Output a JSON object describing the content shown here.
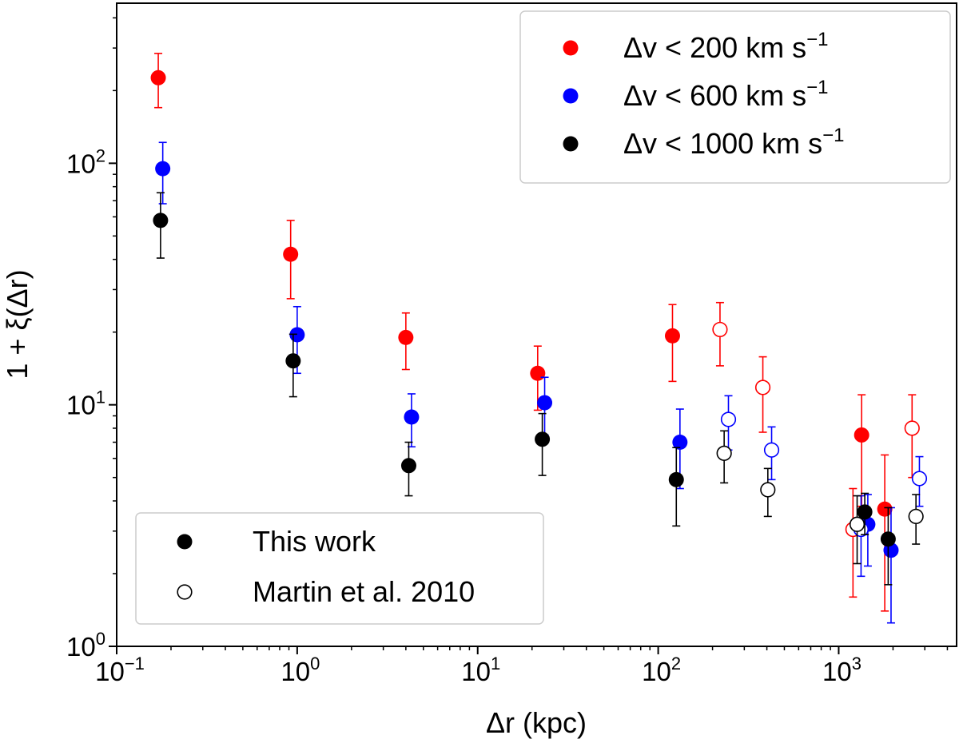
{
  "chart_data": {
    "type": "scatter",
    "xscale": "log",
    "yscale": "log",
    "xlim": [
      0.1,
      4500
    ],
    "ylim": [
      1,
      460
    ],
    "xlabel": "Δr (kpc)",
    "ylabel": "1 + ξ(Δr)",
    "xticks": [
      {
        "base": "10",
        "exp": "−1",
        "value": 0.1
      },
      {
        "base": "10",
        "exp": "0",
        "value": 1
      },
      {
        "base": "10",
        "exp": "1",
        "value": 10
      },
      {
        "base": "10",
        "exp": "2",
        "value": 100
      },
      {
        "base": "10",
        "exp": "3",
        "value": 1000
      }
    ],
    "yticks": [
      {
        "base": "10",
        "exp": "0",
        "value": 1
      },
      {
        "base": "10",
        "exp": "1",
        "value": 10
      },
      {
        "base": "10",
        "exp": "2",
        "value": 100
      }
    ],
    "color_legend": [
      {
        "prefix": "Δv < 200 km s",
        "sup": "−1",
        "color": "#ff0000"
      },
      {
        "prefix": "Δv < 600 km s",
        "sup": "−1",
        "color": "#0000ff"
      },
      {
        "prefix": "Δv < 1000 km s",
        "sup": "−1",
        "color": "#000000"
      }
    ],
    "marker_legend": [
      {
        "label": "This work",
        "filled": true
      },
      {
        "label": "Martin et al. 2010",
        "filled": false
      }
    ],
    "series": [
      {
        "name": "Δv < 200 km s−1 (This work)",
        "color": "#ff0000",
        "filled": true,
        "points": [
          {
            "x": 0.17,
            "y": 226,
            "lo": 170,
            "hi": 285
          },
          {
            "x": 0.92,
            "y": 42,
            "lo": 27.5,
            "hi": 58
          },
          {
            "x": 4.0,
            "y": 19.0,
            "lo": 14.0,
            "hi": 24.0
          },
          {
            "x": 21.5,
            "y": 13.5,
            "lo": 9.5,
            "hi": 17.5
          },
          {
            "x": 120,
            "y": 19.3,
            "lo": 12.5,
            "hi": 26
          },
          {
            "x": 1340,
            "y": 7.5,
            "lo": 3.8,
            "hi": 11.0
          },
          {
            "x": 1800,
            "y": 3.7,
            "lo": 1.4,
            "hi": 6.2
          }
        ]
      },
      {
        "name": "Δv < 200 km s−1 (Martin et al. 2010)",
        "color": "#ff0000",
        "filled": false,
        "points": [
          {
            "x": 220,
            "y": 20.5,
            "lo": 14.5,
            "hi": 26.5
          },
          {
            "x": 380,
            "y": 11.8,
            "lo": 7.7,
            "hi": 15.8
          },
          {
            "x": 1200,
            "y": 3.05,
            "lo": 1.6,
            "hi": 4.5
          },
          {
            "x": 2550,
            "y": 8.0,
            "lo": 5.0,
            "hi": 11.0
          }
        ]
      },
      {
        "name": "Δv < 600 km s−1 (This work)",
        "color": "#0000ff",
        "filled": true,
        "points": [
          {
            "x": 0.18,
            "y": 95,
            "lo": 68,
            "hi": 122
          },
          {
            "x": 1.0,
            "y": 19.5,
            "lo": 13.5,
            "hi": 25.5
          },
          {
            "x": 4.3,
            "y": 8.9,
            "lo": 6.7,
            "hi": 11.1
          },
          {
            "x": 23.5,
            "y": 10.2,
            "lo": 7.5,
            "hi": 13.0
          },
          {
            "x": 132,
            "y": 7.0,
            "lo": 4.5,
            "hi": 9.6
          },
          {
            "x": 1450,
            "y": 3.2,
            "lo": 2.15,
            "hi": 4.25
          },
          {
            "x": 1950,
            "y": 2.5,
            "lo": 1.25,
            "hi": 3.75
          }
        ]
      },
      {
        "name": "Δv < 600 km s−1 (Martin et al. 2010)",
        "color": "#0000ff",
        "filled": false,
        "points": [
          {
            "x": 245,
            "y": 8.7,
            "lo": 6.5,
            "hi": 10.9
          },
          {
            "x": 425,
            "y": 6.5,
            "lo": 4.9,
            "hi": 8.1
          },
          {
            "x": 1330,
            "y": 3.05,
            "lo": 1.95,
            "hi": 4.2
          },
          {
            "x": 2800,
            "y": 4.95,
            "lo": 3.8,
            "hi": 6.1
          }
        ]
      },
      {
        "name": "Δv < 1000 km s−1 (This work)",
        "color": "#000000",
        "filled": true,
        "points": [
          {
            "x": 0.175,
            "y": 58,
            "lo": 40.5,
            "hi": 75.5
          },
          {
            "x": 0.95,
            "y": 15.2,
            "lo": 10.8,
            "hi": 19.6
          },
          {
            "x": 4.15,
            "y": 5.6,
            "lo": 4.2,
            "hi": 7.0
          },
          {
            "x": 22.8,
            "y": 7.2,
            "lo": 5.1,
            "hi": 9.2
          },
          {
            "x": 126,
            "y": 4.9,
            "lo": 3.15,
            "hi": 6.65
          },
          {
            "x": 1395,
            "y": 3.6,
            "lo": 2.9,
            "hi": 4.3
          },
          {
            "x": 1880,
            "y": 2.78,
            "lo": 1.8,
            "hi": 3.75
          }
        ]
      },
      {
        "name": "Δv < 1000 km s−1 (Martin et al. 2010)",
        "color": "#000000",
        "filled": false,
        "points": [
          {
            "x": 232,
            "y": 6.3,
            "lo": 4.75,
            "hi": 7.8
          },
          {
            "x": 405,
            "y": 4.45,
            "lo": 3.45,
            "hi": 5.45
          },
          {
            "x": 1265,
            "y": 3.2,
            "lo": 2.2,
            "hi": 4.2
          },
          {
            "x": 2680,
            "y": 3.45,
            "lo": 2.65,
            "hi": 4.25
          }
        ]
      }
    ]
  }
}
